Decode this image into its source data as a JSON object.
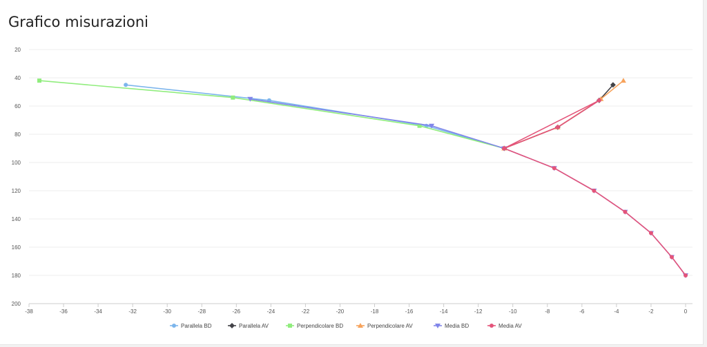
{
  "page": {
    "title": "Grafico misurazioni"
  },
  "chart_data": {
    "type": "line",
    "title": "Grafico misurazioni",
    "xlabel": "",
    "ylabel": "",
    "xlim": [
      -38,
      0
    ],
    "ylim": [
      20,
      200
    ],
    "y_reversed": true,
    "grid": "horizontal",
    "legend_position": "bottom-center",
    "x_ticks": [
      "-38",
      "-36",
      "-34",
      "-32",
      "-30",
      "-28",
      "-26",
      "-24",
      "-22",
      "-20",
      "-18",
      "-16",
      "-14",
      "-12",
      "-10",
      "-8",
      "-6",
      "-4",
      "-2",
      "0"
    ],
    "y_ticks": [
      "20",
      "40",
      "60",
      "80",
      "100",
      "120",
      "140",
      "160",
      "180",
      "200"
    ],
    "series": [
      {
        "name": "Parallela BD",
        "color": "#7cb5ec",
        "marker": "circle",
        "points": [
          [
            -32.4,
            45
          ],
          [
            -24.1,
            56
          ],
          [
            -15.0,
            74
          ],
          [
            -10.5,
            90
          ]
        ]
      },
      {
        "name": "Parallela AV",
        "color": "#434348",
        "marker": "diamond",
        "points": [
          [
            -10.5,
            90
          ],
          [
            -7.4,
            75
          ],
          [
            -5.0,
            56
          ],
          [
            -4.2,
            45
          ]
        ]
      },
      {
        "name": "Perpendicolare BD",
        "color": "#90ed7d",
        "marker": "square",
        "points": [
          [
            -37.4,
            42
          ],
          [
            -26.2,
            54
          ],
          [
            -15.4,
            74
          ],
          [
            -10.5,
            90
          ]
        ]
      },
      {
        "name": "Perpendicolare AV",
        "color": "#f7a35c",
        "marker": "triangle",
        "points": [
          [
            -10.5,
            90
          ],
          [
            -7.4,
            75
          ],
          [
            -4.9,
            55
          ],
          [
            -3.6,
            42
          ]
        ]
      },
      {
        "name": "Media BD",
        "color": "#8085e9",
        "marker": "triangle-down",
        "points": [
          [
            -25.2,
            55
          ],
          [
            -14.7,
            74
          ],
          [
            -10.5,
            90
          ],
          [
            -7.6,
            104
          ],
          [
            -5.3,
            120
          ],
          [
            -3.5,
            135
          ],
          [
            -2.0,
            150
          ],
          [
            -0.8,
            167
          ],
          [
            0,
            180
          ]
        ]
      },
      {
        "name": "Media AV",
        "color": "#e4547a",
        "marker": "circle",
        "points": [
          [
            -10.5,
            90
          ],
          [
            -7.4,
            75
          ],
          [
            -5.0,
            56
          ],
          [
            -10.5,
            90
          ],
          [
            -7.6,
            104
          ],
          [
            -5.3,
            120
          ],
          [
            -3.5,
            135
          ],
          [
            -2.0,
            150
          ],
          [
            -0.8,
            167
          ],
          [
            0,
            180
          ]
        ]
      }
    ]
  }
}
